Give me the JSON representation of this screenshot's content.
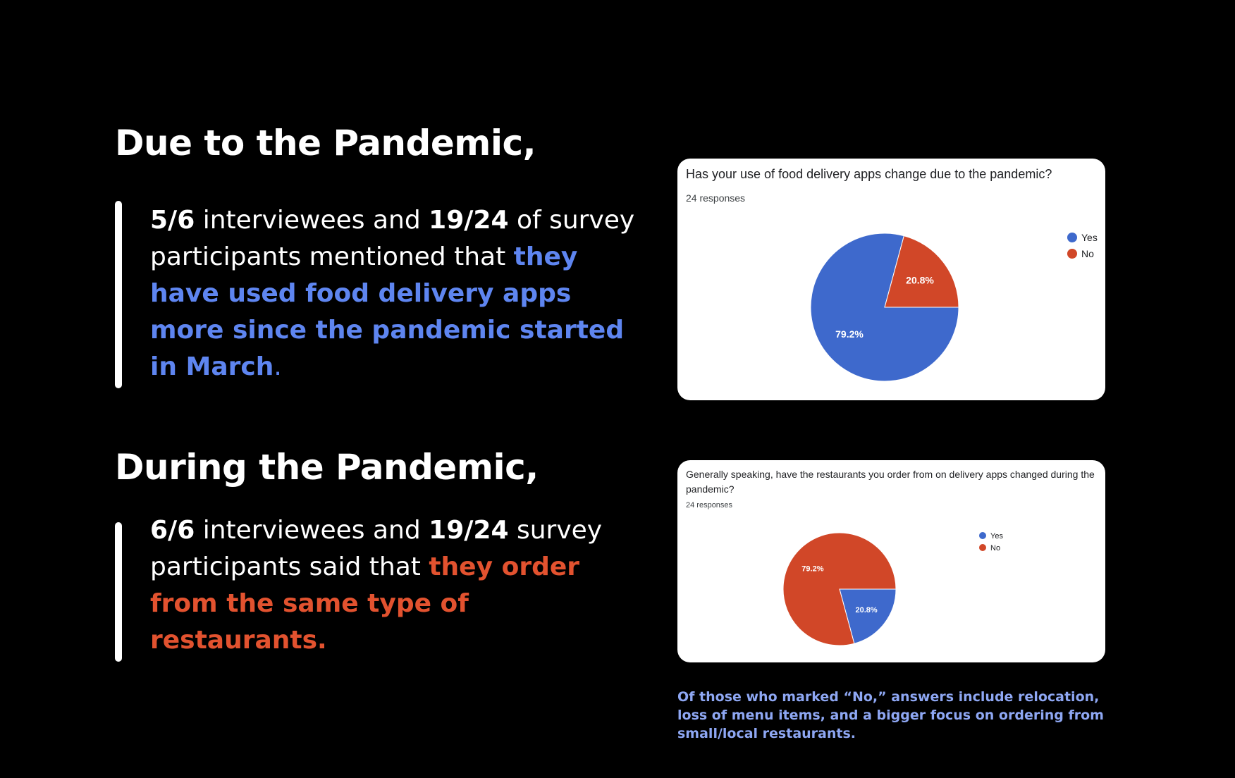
{
  "colors": {
    "blue_text": "#5e85f0",
    "red_text": "#e2522f",
    "note_text": "#8ea7f3",
    "yes": "#3e69cc",
    "no": "#d14728"
  },
  "section1": {
    "heading": "Due to the Pandemic,",
    "stat_a": "5/6",
    "text_a": " interviewees and ",
    "stat_b": "19/24",
    "text_b": " of survey participants mentioned that ",
    "highlight": "they have used food delivery apps more since the pandemic started in March",
    "end": "."
  },
  "section2": {
    "heading": "During the Pandemic,",
    "stat_a": "6/6",
    "text_a": " interviewees and ",
    "stat_b": "19/24",
    "text_b": " survey participants said that ",
    "highlight": "they order from the same type of restaurants."
  },
  "note": "Of those who marked “No,” answers include relocation, loss of menu items, and a bigger focus on ordering from small/local restaurants.",
  "chart_data": [
    {
      "type": "pie",
      "title": "Has your use of food delivery apps change due to the pandemic?",
      "subtitle": "24 responses",
      "labels": [
        "Yes",
        "No"
      ],
      "values": [
        79.2,
        20.8
      ],
      "value_labels": [
        "79.2%",
        "20.8%"
      ],
      "colors": [
        "#3e69cc",
        "#d14728"
      ],
      "legend": "right"
    },
    {
      "type": "pie",
      "title": "Generally speaking, have the restaurants you order from on delivery apps changed during the pandemic?",
      "subtitle": "24 responses",
      "labels": [
        "Yes",
        "No"
      ],
      "values": [
        20.8,
        79.2
      ],
      "value_labels": [
        "20.8%",
        "79.2%"
      ],
      "colors": [
        "#3e69cc",
        "#d14728"
      ],
      "legend": "right"
    }
  ]
}
